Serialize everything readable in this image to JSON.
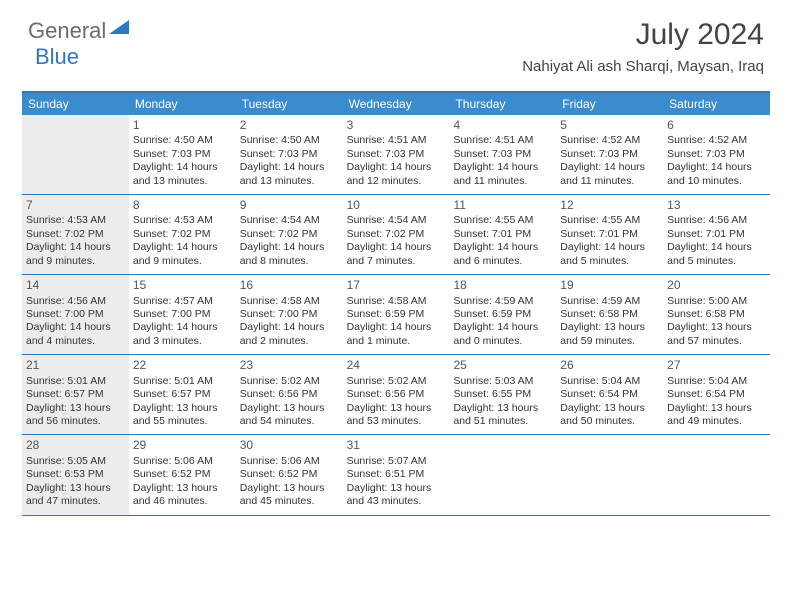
{
  "logo": {
    "general": "General",
    "blue": "Blue"
  },
  "title": "July 2024",
  "location": "Nahiyat Ali ash Sharqi, Maysan, Iraq",
  "colors": {
    "header_bg": "#3a8cce",
    "border": "#2f78bc",
    "shade": "#ececec",
    "text": "#333333",
    "title": "#444444"
  },
  "weekdays": [
    "Sunday",
    "Monday",
    "Tuesday",
    "Wednesday",
    "Thursday",
    "Friday",
    "Saturday"
  ],
  "weeks": [
    [
      {
        "num": "",
        "sunrise": "",
        "sunset": "",
        "daylight": "",
        "shaded": true
      },
      {
        "num": "1",
        "sunrise": "Sunrise: 4:50 AM",
        "sunset": "Sunset: 7:03 PM",
        "daylight": "Daylight: 14 hours and 13 minutes.",
        "shaded": false
      },
      {
        "num": "2",
        "sunrise": "Sunrise: 4:50 AM",
        "sunset": "Sunset: 7:03 PM",
        "daylight": "Daylight: 14 hours and 13 minutes.",
        "shaded": false
      },
      {
        "num": "3",
        "sunrise": "Sunrise: 4:51 AM",
        "sunset": "Sunset: 7:03 PM",
        "daylight": "Daylight: 14 hours and 12 minutes.",
        "shaded": false
      },
      {
        "num": "4",
        "sunrise": "Sunrise: 4:51 AM",
        "sunset": "Sunset: 7:03 PM",
        "daylight": "Daylight: 14 hours and 11 minutes.",
        "shaded": false
      },
      {
        "num": "5",
        "sunrise": "Sunrise: 4:52 AM",
        "sunset": "Sunset: 7:03 PM",
        "daylight": "Daylight: 14 hours and 11 minutes.",
        "shaded": false
      },
      {
        "num": "6",
        "sunrise": "Sunrise: 4:52 AM",
        "sunset": "Sunset: 7:03 PM",
        "daylight": "Daylight: 14 hours and 10 minutes.",
        "shaded": false
      }
    ],
    [
      {
        "num": "7",
        "sunrise": "Sunrise: 4:53 AM",
        "sunset": "Sunset: 7:02 PM",
        "daylight": "Daylight: 14 hours and 9 minutes.",
        "shaded": true
      },
      {
        "num": "8",
        "sunrise": "Sunrise: 4:53 AM",
        "sunset": "Sunset: 7:02 PM",
        "daylight": "Daylight: 14 hours and 9 minutes.",
        "shaded": false
      },
      {
        "num": "9",
        "sunrise": "Sunrise: 4:54 AM",
        "sunset": "Sunset: 7:02 PM",
        "daylight": "Daylight: 14 hours and 8 minutes.",
        "shaded": false
      },
      {
        "num": "10",
        "sunrise": "Sunrise: 4:54 AM",
        "sunset": "Sunset: 7:02 PM",
        "daylight": "Daylight: 14 hours and 7 minutes.",
        "shaded": false
      },
      {
        "num": "11",
        "sunrise": "Sunrise: 4:55 AM",
        "sunset": "Sunset: 7:01 PM",
        "daylight": "Daylight: 14 hours and 6 minutes.",
        "shaded": false
      },
      {
        "num": "12",
        "sunrise": "Sunrise: 4:55 AM",
        "sunset": "Sunset: 7:01 PM",
        "daylight": "Daylight: 14 hours and 5 minutes.",
        "shaded": false
      },
      {
        "num": "13",
        "sunrise": "Sunrise: 4:56 AM",
        "sunset": "Sunset: 7:01 PM",
        "daylight": "Daylight: 14 hours and 5 minutes.",
        "shaded": false
      }
    ],
    [
      {
        "num": "14",
        "sunrise": "Sunrise: 4:56 AM",
        "sunset": "Sunset: 7:00 PM",
        "daylight": "Daylight: 14 hours and 4 minutes.",
        "shaded": true
      },
      {
        "num": "15",
        "sunrise": "Sunrise: 4:57 AM",
        "sunset": "Sunset: 7:00 PM",
        "daylight": "Daylight: 14 hours and 3 minutes.",
        "shaded": false
      },
      {
        "num": "16",
        "sunrise": "Sunrise: 4:58 AM",
        "sunset": "Sunset: 7:00 PM",
        "daylight": "Daylight: 14 hours and 2 minutes.",
        "shaded": false
      },
      {
        "num": "17",
        "sunrise": "Sunrise: 4:58 AM",
        "sunset": "Sunset: 6:59 PM",
        "daylight": "Daylight: 14 hours and 1 minute.",
        "shaded": false
      },
      {
        "num": "18",
        "sunrise": "Sunrise: 4:59 AM",
        "sunset": "Sunset: 6:59 PM",
        "daylight": "Daylight: 14 hours and 0 minutes.",
        "shaded": false
      },
      {
        "num": "19",
        "sunrise": "Sunrise: 4:59 AM",
        "sunset": "Sunset: 6:58 PM",
        "daylight": "Daylight: 13 hours and 59 minutes.",
        "shaded": false
      },
      {
        "num": "20",
        "sunrise": "Sunrise: 5:00 AM",
        "sunset": "Sunset: 6:58 PM",
        "daylight": "Daylight: 13 hours and 57 minutes.",
        "shaded": false
      }
    ],
    [
      {
        "num": "21",
        "sunrise": "Sunrise: 5:01 AM",
        "sunset": "Sunset: 6:57 PM",
        "daylight": "Daylight: 13 hours and 56 minutes.",
        "shaded": true
      },
      {
        "num": "22",
        "sunrise": "Sunrise: 5:01 AM",
        "sunset": "Sunset: 6:57 PM",
        "daylight": "Daylight: 13 hours and 55 minutes.",
        "shaded": false
      },
      {
        "num": "23",
        "sunrise": "Sunrise: 5:02 AM",
        "sunset": "Sunset: 6:56 PM",
        "daylight": "Daylight: 13 hours and 54 minutes.",
        "shaded": false
      },
      {
        "num": "24",
        "sunrise": "Sunrise: 5:02 AM",
        "sunset": "Sunset: 6:56 PM",
        "daylight": "Daylight: 13 hours and 53 minutes.",
        "shaded": false
      },
      {
        "num": "25",
        "sunrise": "Sunrise: 5:03 AM",
        "sunset": "Sunset: 6:55 PM",
        "daylight": "Daylight: 13 hours and 51 minutes.",
        "shaded": false
      },
      {
        "num": "26",
        "sunrise": "Sunrise: 5:04 AM",
        "sunset": "Sunset: 6:54 PM",
        "daylight": "Daylight: 13 hours and 50 minutes.",
        "shaded": false
      },
      {
        "num": "27",
        "sunrise": "Sunrise: 5:04 AM",
        "sunset": "Sunset: 6:54 PM",
        "daylight": "Daylight: 13 hours and 49 minutes.",
        "shaded": false
      }
    ],
    [
      {
        "num": "28",
        "sunrise": "Sunrise: 5:05 AM",
        "sunset": "Sunset: 6:53 PM",
        "daylight": "Daylight: 13 hours and 47 minutes.",
        "shaded": true
      },
      {
        "num": "29",
        "sunrise": "Sunrise: 5:06 AM",
        "sunset": "Sunset: 6:52 PM",
        "daylight": "Daylight: 13 hours and 46 minutes.",
        "shaded": false
      },
      {
        "num": "30",
        "sunrise": "Sunrise: 5:06 AM",
        "sunset": "Sunset: 6:52 PM",
        "daylight": "Daylight: 13 hours and 45 minutes.",
        "shaded": false
      },
      {
        "num": "31",
        "sunrise": "Sunrise: 5:07 AM",
        "sunset": "Sunset: 6:51 PM",
        "daylight": "Daylight: 13 hours and 43 minutes.",
        "shaded": false
      },
      {
        "num": "",
        "sunrise": "",
        "sunset": "",
        "daylight": "",
        "shaded": false
      },
      {
        "num": "",
        "sunrise": "",
        "sunset": "",
        "daylight": "",
        "shaded": false
      },
      {
        "num": "",
        "sunrise": "",
        "sunset": "",
        "daylight": "",
        "shaded": false
      }
    ]
  ]
}
